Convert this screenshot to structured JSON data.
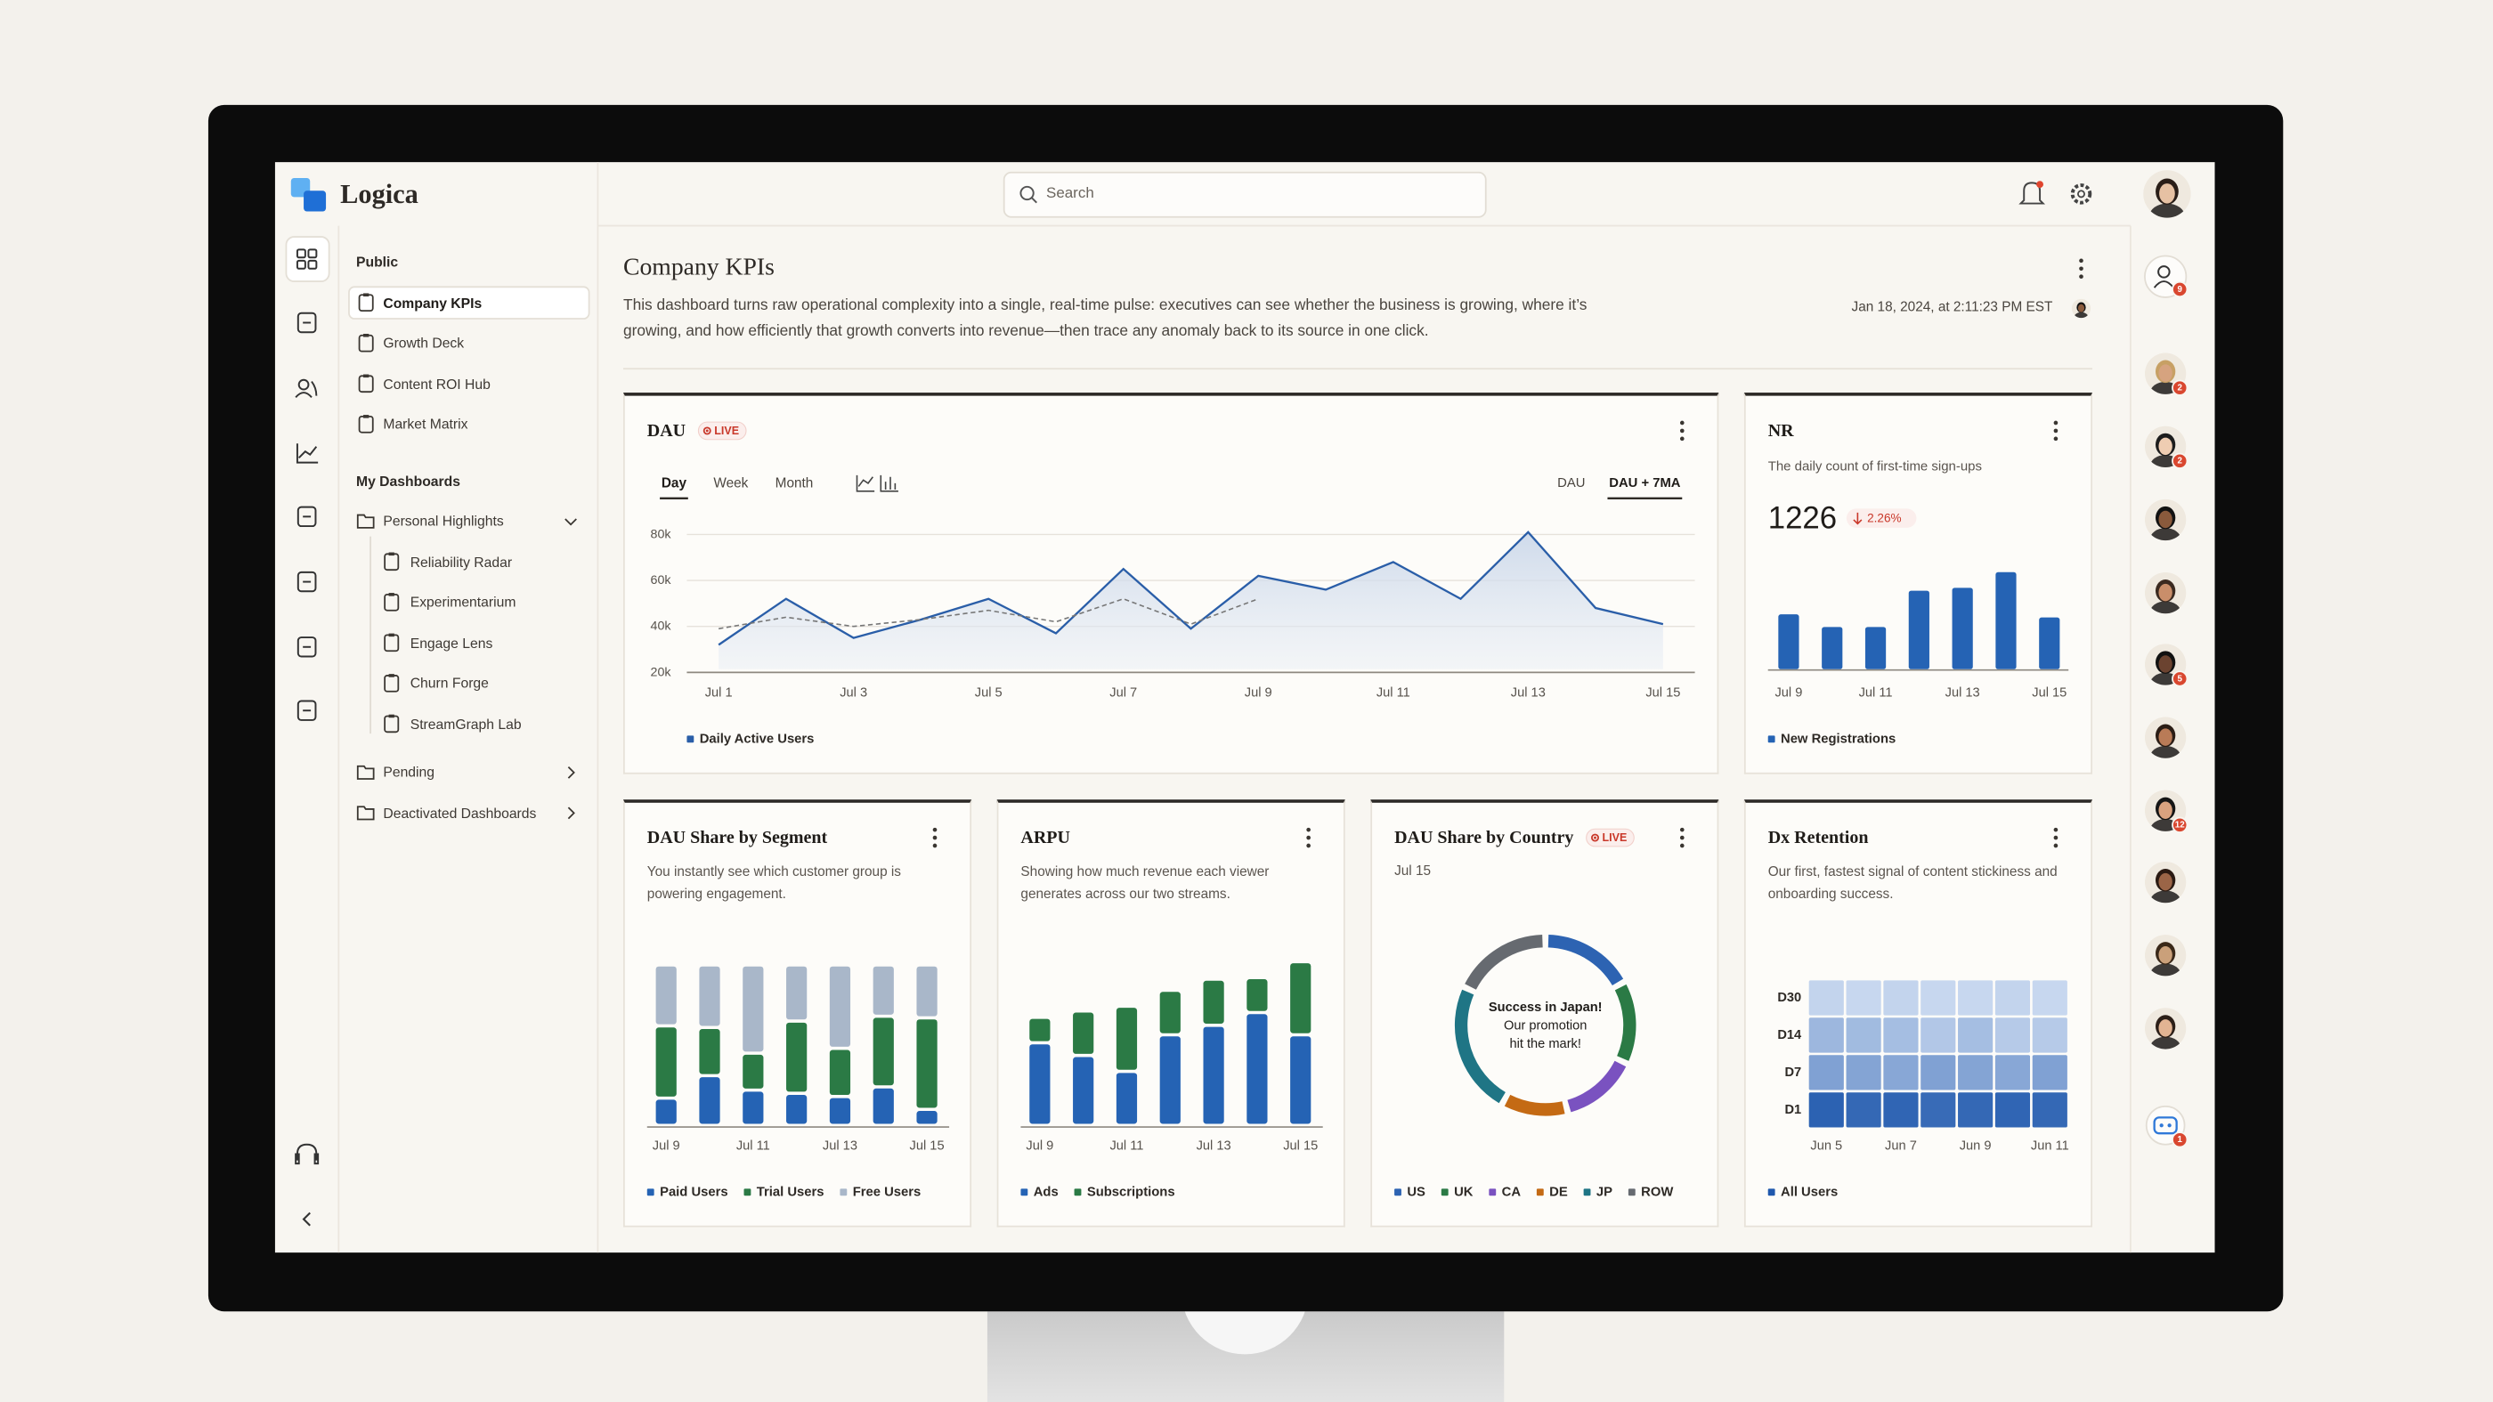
{
  "app_name": "Logica",
  "search_placeholder": "Search",
  "nav": {
    "sections": [
      {
        "title": "Public",
        "items": [
          {
            "label": "Company KPIs",
            "selected": true
          },
          {
            "label": "Growth Deck"
          },
          {
            "label": "Content ROI Hub"
          },
          {
            "label": "Market Matrix"
          }
        ]
      },
      {
        "title": "My Dashboards",
        "items": [
          {
            "label": "Personal Highlights",
            "folder": true,
            "children": [
              "Reliability Radar",
              "Experimentarium",
              "Engage Lens",
              "Churn Forge",
              "StreamGraph Lab"
            ]
          },
          {
            "label": "Pending",
            "folder": true
          },
          {
            "label": "Deactivated Dashboards",
            "folder": true
          }
        ]
      }
    ]
  },
  "page": {
    "title": "Company KPIs",
    "description": "This dashboard turns raw operational complexity into a single, real-time pulse: executives can see whether the business is growing, where it’s growing, and how efficiently that growth converts into revenue—then trace any anomaly back to its source in one click.",
    "timestamp": "Jan 18, 2024, at 2:11:23 PM EST"
  },
  "presence": {
    "team_badge": 9,
    "avatar_badges": [
      2,
      2,
      null,
      null,
      5,
      null,
      12,
      null,
      null,
      null
    ],
    "assistant_badge": 1
  },
  "chart_data": [
    {
      "type": "line",
      "title": "DAU",
      "badge": "LIVE",
      "tabs": [
        "Day",
        "Week",
        "Month"
      ],
      "active_tab": 0,
      "views": [
        "DAU",
        "DAU + 7MA"
      ],
      "active_view": 1,
      "categories": [
        "Jul 1",
        null,
        "Jul 3",
        null,
        "Jul 5",
        null,
        "Jul 7",
        null,
        "Jul 9",
        null,
        "Jul 11",
        null,
        "Jul 13",
        null,
        "Jul 15"
      ],
      "series": [
        {
          "name": "Daily Active Users",
          "color": "#2a5ea8",
          "values": [
            32000,
            52000,
            35000,
            43000,
            52000,
            37000,
            65000,
            39000,
            62000,
            56000,
            68000,
            52000,
            81000,
            48000,
            41000
          ]
        },
        {
          "color": "#777777",
          "values": [
            39000,
            44000,
            40000,
            43000,
            47000,
            42000,
            52000,
            41000,
            52000,
            null,
            null,
            null,
            null,
            null,
            null
          ]
        }
      ],
      "ylim": [
        20000,
        85000
      ],
      "yticks": [
        {
          "value": 20000,
          "label": "20k"
        },
        {
          "value": 40000,
          "label": "40k"
        },
        {
          "value": 60000,
          "label": "60k"
        },
        {
          "value": 80000,
          "label": "80k"
        }
      ],
      "grid": true
    },
    {
      "type": "bar",
      "title": "NR",
      "subtitle": "The daily count of first-time sign-ups",
      "metric": 1226,
      "change": "2.26%",
      "categories": [
        "Jul 9",
        null,
        "Jul 11",
        null,
        "Jul 13",
        null,
        "Jul 15"
      ],
      "series": [
        {
          "name": "New Registrations",
          "color": "#2563b4",
          "values": [
            1300,
            1000,
            1000,
            1860,
            1930,
            2300,
            1226
          ]
        }
      ],
      "ylim": [
        0,
        2600
      ]
    },
    {
      "type": "stacked_bar",
      "title": "DAU Share by Segment",
      "subtitle": "You instantly see which customer group is powering engagement.",
      "categories": [
        "Jul 9",
        null,
        "Jul 11",
        null,
        "Jul 13",
        null,
        "Jul 15"
      ],
      "series": [
        {
          "name": "Paid Users",
          "color": "#2563b4",
          "values": [
            17,
            31,
            22,
            20,
            18,
            24,
            10
          ]
        },
        {
          "name": "Trial Users",
          "color": "#2b7a45",
          "values": [
            45,
            30,
            23,
            45,
            30,
            44,
            57
          ]
        },
        {
          "name": "Free Users",
          "color": "#a9b7c9",
          "values": [
            38,
            39,
            55,
            35,
            52,
            32,
            33
          ]
        }
      ],
      "ylim": [
        0,
        100
      ]
    },
    {
      "type": "stacked_bar",
      "title": "ARPU",
      "subtitle": "Showing how much revenue each viewer generates across our two streams.",
      "categories": [
        "Jul 9",
        null,
        "Jul 11",
        null,
        "Jul 13",
        null,
        "Jul 15"
      ],
      "series": [
        {
          "name": "Ads",
          "color": "#2563b4",
          "values": [
            0.52,
            0.44,
            0.34,
            0.57,
            0.63,
            0.71,
            0.57
          ]
        },
        {
          "name": "Subscriptions",
          "color": "#2b7a45",
          "values": [
            0.16,
            0.28,
            0.41,
            0.28,
            0.29,
            0.22,
            0.46
          ]
        }
      ],
      "ylim": [
        0,
        1.15
      ]
    },
    {
      "type": "donut",
      "title": "DAU Share by Country",
      "badge": "LIVE",
      "subtitle": "Jul 15",
      "categories": [
        "US",
        "UK",
        "CA",
        "DE",
        "JP",
        "ROW"
      ],
      "values": [
        17,
        15,
        14,
        12,
        24,
        18
      ],
      "colors": [
        "#2d63b2",
        "#2b7a45",
        "#7a52c0",
        "#c46a14",
        "#1f7585",
        "#666a70"
      ],
      "center_lines": [
        "Success in Japan!",
        "Our promotion",
        "hit the mark!"
      ]
    },
    {
      "type": "heatmap",
      "title": "Dx Retention",
      "subtitle": "Our first, fastest signal of content stickiness and onboarding success.",
      "rows": [
        "D30",
        "D14",
        "D7",
        "D1"
      ],
      "columns": [
        "Jun 5",
        null,
        "Jun 7",
        null,
        "Jun 9",
        null,
        "Jun 11"
      ],
      "values": [
        [
          6,
          5,
          6,
          5,
          5,
          6,
          5
        ],
        [
          15,
          14,
          13,
          10,
          13,
          9,
          9
        ],
        [
          22,
          21,
          20,
          22,
          21,
          20,
          22
        ],
        [
          42,
          40,
          41,
          39,
          40,
          41,
          40
        ]
      ],
      "vlim": [
        0,
        45
      ],
      "colors": [
        "#dce7f7",
        "#1f58ad"
      ],
      "legend": "All Users"
    }
  ]
}
